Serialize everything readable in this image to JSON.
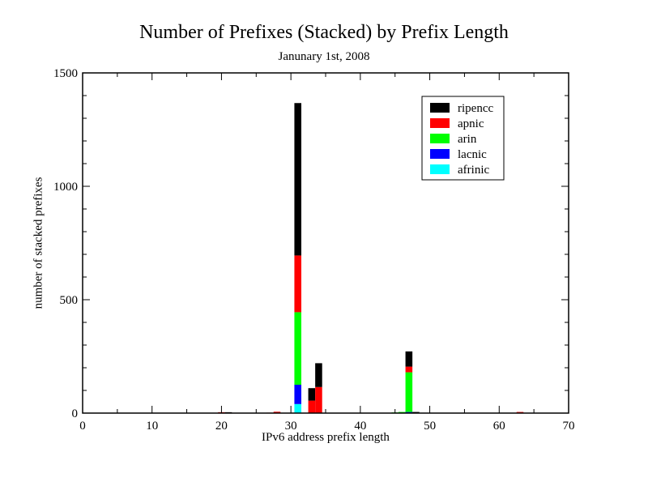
{
  "chart_data": {
    "type": "bar",
    "stacked": true,
    "title": "Number of Prefixes (Stacked) by Prefix Length",
    "subtitle": "Janunary 1st, 2008",
    "xlabel": "IPv6 address prefix length",
    "ylabel": "number of stacked prefixes",
    "xlim": [
      0,
      70
    ],
    "ylim": [
      0,
      1500
    ],
    "xticks": [
      0,
      10,
      20,
      30,
      40,
      50,
      60,
      70
    ],
    "yticks": [
      0,
      500,
      1000,
      1500
    ],
    "grid": false,
    "legend_position": "top-right",
    "categories": [
      20,
      21,
      27,
      28,
      31,
      33,
      34,
      45,
      46,
      47,
      48,
      63
    ],
    "series": [
      {
        "name": "afrinic",
        "color": "#00ffff",
        "values": [
          0,
          0,
          0,
          0,
          40,
          0,
          0,
          0,
          0,
          0,
          0,
          0
        ]
      },
      {
        "name": "lacnic",
        "color": "#0000ff",
        "values": [
          0,
          0,
          0,
          0,
          85,
          0,
          0,
          0,
          0,
          5,
          0,
          0
        ]
      },
      {
        "name": "arin",
        "color": "#00ff00",
        "values": [
          0,
          0,
          0,
          0,
          320,
          0,
          0,
          3,
          5,
          175,
          0,
          0
        ]
      },
      {
        "name": "apnic",
        "color": "#ff0000",
        "values": [
          4,
          2,
          2,
          6,
          250,
          55,
          115,
          0,
          0,
          25,
          0,
          5
        ]
      },
      {
        "name": "ripencc",
        "color": "#000000",
        "values": [
          0,
          2,
          0,
          0,
          672,
          55,
          105,
          0,
          0,
          67,
          5,
          0
        ]
      }
    ],
    "legend_order": [
      "ripencc",
      "apnic",
      "arin",
      "lacnic",
      "afrinic"
    ]
  }
}
